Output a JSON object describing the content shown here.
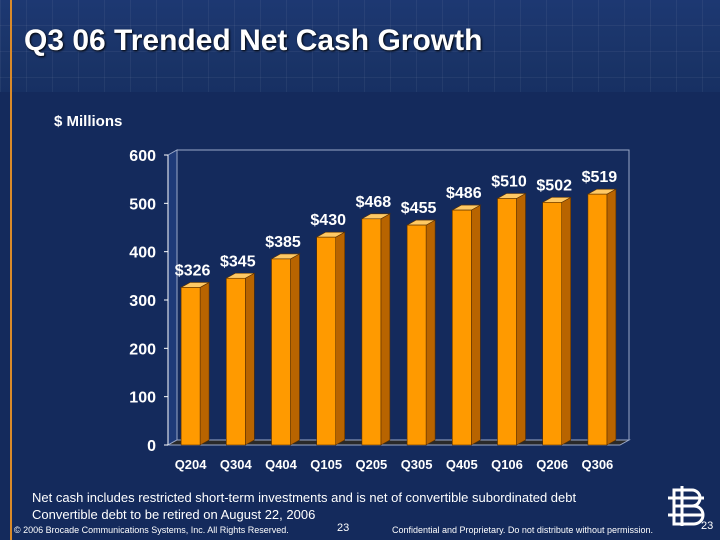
{
  "slide": {
    "title": "Q3 06 Trended Net Cash Growth",
    "units_label": "$ Millions",
    "notes": [
      "Net cash includes restricted short-term investments and is net of convertible subordinated debt",
      "Convertible debt to be retired on August 22, 2006"
    ],
    "footer": {
      "copyright": "© 2006 Brocade Communications Systems, Inc. All Rights Reserved.",
      "page_center": "23",
      "confidential": "Confidential and Proprietary. Do not distribute without permission.",
      "page_right": "23"
    }
  },
  "colors": {
    "background": "#142a5c",
    "bar_front": "#ff9a00",
    "bar_side": "#b86400",
    "bar_top": "#ffc964",
    "text": "#ffffff"
  },
  "chart_data": {
    "type": "bar",
    "categories": [
      "Q204",
      "Q304",
      "Q404",
      "Q105",
      "Q205",
      "Q305",
      "Q405",
      "Q106",
      "Q206",
      "Q306"
    ],
    "values": [
      326,
      345,
      385,
      430,
      468,
      455,
      486,
      510,
      502,
      519
    ],
    "data_labels": [
      "$326",
      "$345",
      "$385",
      "$430",
      "$468",
      "$455",
      "$486",
      "$510",
      "$502",
      "$519"
    ],
    "yticks": [
      0,
      100,
      200,
      300,
      400,
      500,
      600
    ],
    "ylim": [
      0,
      600
    ],
    "ylabel": "$ Millions",
    "title": "Q3 06 Trended Net Cash Growth",
    "grid": false,
    "legend": "none"
  }
}
